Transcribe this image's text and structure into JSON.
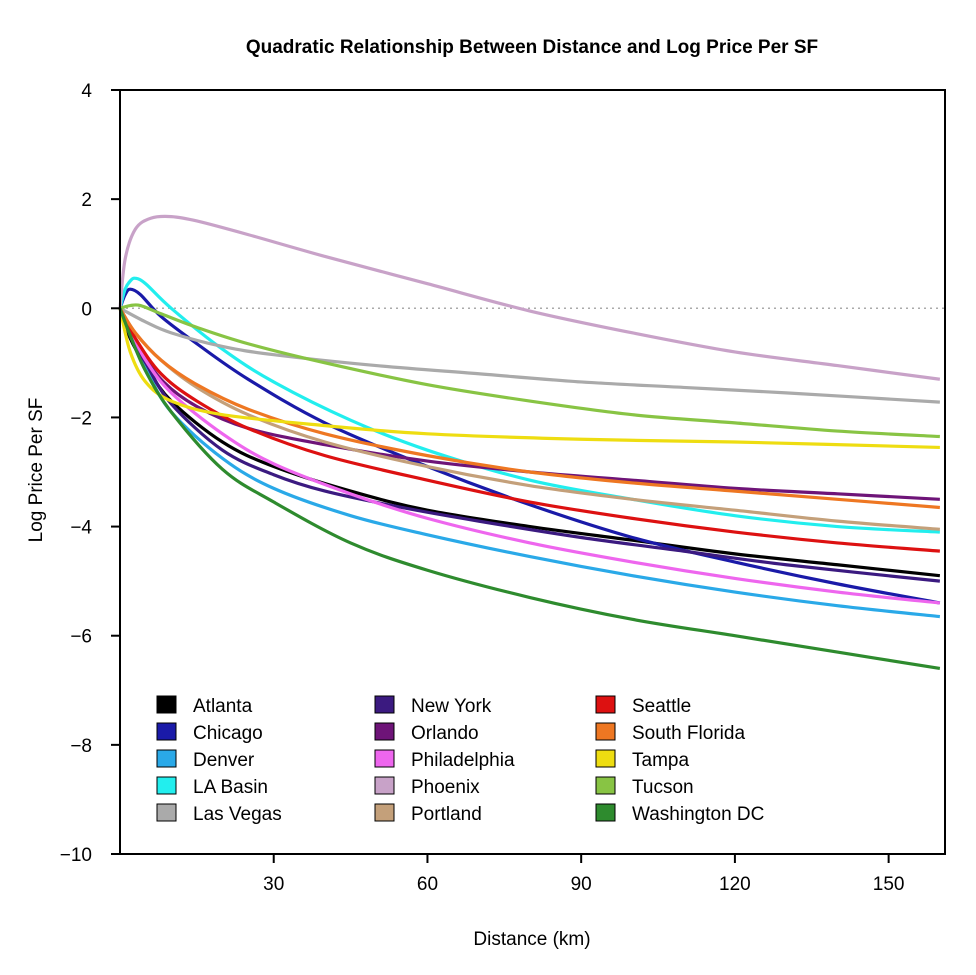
{
  "chart_data": {
    "type": "line",
    "title": "Quadratic Relationship Between Distance and Log Price Per SF",
    "xlabel": "Distance (km)",
    "ylabel": "Log Price Per SF",
    "xlim": [
      0,
      161
    ],
    "ylim": [
      -10,
      4
    ],
    "xticks": [
      30,
      60,
      90,
      120,
      150
    ],
    "yticks": [
      4,
      2,
      0,
      -2,
      -4,
      -6,
      -8,
      -10
    ],
    "ytick_labels": [
      "4",
      "2",
      "0",
      "−2",
      "−4",
      "−6",
      "−8",
      "−10"
    ],
    "reference_line": {
      "y": 0,
      "style": "dotted",
      "color": "#aaaaaa"
    },
    "legend_position": "bottom-left",
    "series": [
      {
        "name": "Atlanta",
        "color": "#000000",
        "points": [
          [
            0,
            0
          ],
          [
            2,
            -0.55
          ],
          [
            5,
            -1.05
          ],
          [
            10,
            -1.7
          ],
          [
            20,
            -2.45
          ],
          [
            30,
            -2.9
          ],
          [
            45,
            -3.35
          ],
          [
            60,
            -3.7
          ],
          [
            80,
            -4.0
          ],
          [
            100,
            -4.25
          ],
          [
            120,
            -4.5
          ],
          [
            140,
            -4.7
          ],
          [
            160,
            -4.9
          ]
        ]
      },
      {
        "name": "Chicago",
        "color": "#1a1aa8",
        "points": [
          [
            0,
            0
          ],
          [
            1,
            0.25
          ],
          [
            2,
            0.35
          ],
          [
            4,
            0.25
          ],
          [
            8,
            -0.15
          ],
          [
            15,
            -0.65
          ],
          [
            25,
            -1.3
          ],
          [
            40,
            -2.1
          ],
          [
            60,
            -2.9
          ],
          [
            80,
            -3.6
          ],
          [
            100,
            -4.2
          ],
          [
            120,
            -4.65
          ],
          [
            140,
            -5.05
          ],
          [
            160,
            -5.4
          ]
        ]
      },
      {
        "name": "Denver",
        "color": "#2aa9e8",
        "points": [
          [
            0,
            0
          ],
          [
            2,
            -0.5
          ],
          [
            5,
            -1.1
          ],
          [
            10,
            -1.9
          ],
          [
            20,
            -2.75
          ],
          [
            30,
            -3.3
          ],
          [
            45,
            -3.8
          ],
          [
            60,
            -4.15
          ],
          [
            80,
            -4.55
          ],
          [
            100,
            -4.9
          ],
          [
            120,
            -5.2
          ],
          [
            140,
            -5.45
          ],
          [
            160,
            -5.65
          ]
        ]
      },
      {
        "name": "LA Basin",
        "color": "#22eeee",
        "points": [
          [
            0,
            0
          ],
          [
            1,
            0.35
          ],
          [
            2,
            0.5
          ],
          [
            3,
            0.55
          ],
          [
            5,
            0.45
          ],
          [
            10,
            0.0
          ],
          [
            20,
            -0.75
          ],
          [
            30,
            -1.35
          ],
          [
            45,
            -2.05
          ],
          [
            60,
            -2.6
          ],
          [
            80,
            -3.15
          ],
          [
            100,
            -3.5
          ],
          [
            120,
            -3.8
          ],
          [
            140,
            -4.0
          ],
          [
            160,
            -4.1
          ]
        ]
      },
      {
        "name": "Las Vegas",
        "color": "#aaaaaa",
        "points": [
          [
            0,
            0
          ],
          [
            5,
            -0.25
          ],
          [
            10,
            -0.45
          ],
          [
            20,
            -0.7
          ],
          [
            30,
            -0.85
          ],
          [
            50,
            -1.05
          ],
          [
            70,
            -1.2
          ],
          [
            90,
            -1.35
          ],
          [
            110,
            -1.45
          ],
          [
            130,
            -1.55
          ],
          [
            160,
            -1.72
          ]
        ]
      },
      {
        "name": "New York",
        "color": "#3b1a80",
        "points": [
          [
            0,
            0
          ],
          [
            2,
            -0.5
          ],
          [
            5,
            -1.0
          ],
          [
            10,
            -1.75
          ],
          [
            20,
            -2.6
          ],
          [
            30,
            -3.05
          ],
          [
            40,
            -3.35
          ],
          [
            55,
            -3.65
          ],
          [
            70,
            -3.9
          ],
          [
            90,
            -4.2
          ],
          [
            110,
            -4.45
          ],
          [
            130,
            -4.7
          ],
          [
            160,
            -5.0
          ]
        ]
      },
      {
        "name": "Orlando",
        "color": "#6e1478",
        "points": [
          [
            0,
            0
          ],
          [
            3,
            -0.6
          ],
          [
            8,
            -1.3
          ],
          [
            15,
            -1.8
          ],
          [
            25,
            -2.2
          ],
          [
            40,
            -2.5
          ],
          [
            60,
            -2.8
          ],
          [
            80,
            -3.0
          ],
          [
            100,
            -3.15
          ],
          [
            120,
            -3.3
          ],
          [
            140,
            -3.4
          ],
          [
            160,
            -3.5
          ]
        ]
      },
      {
        "name": "Philadelphia",
        "color": "#ee66ee",
        "points": [
          [
            0,
            0
          ],
          [
            2,
            -0.4
          ],
          [
            5,
            -0.95
          ],
          [
            10,
            -1.55
          ],
          [
            20,
            -2.3
          ],
          [
            30,
            -2.85
          ],
          [
            45,
            -3.4
          ],
          [
            60,
            -3.85
          ],
          [
            80,
            -4.3
          ],
          [
            100,
            -4.65
          ],
          [
            120,
            -4.95
          ],
          [
            140,
            -5.2
          ],
          [
            160,
            -5.4
          ]
        ]
      },
      {
        "name": "Phoenix",
        "color": "#c8a2c8",
        "points": [
          [
            0,
            0
          ],
          [
            1,
            0.9
          ],
          [
            3,
            1.45
          ],
          [
            6,
            1.65
          ],
          [
            10,
            1.68
          ],
          [
            15,
            1.6
          ],
          [
            25,
            1.35
          ],
          [
            40,
            0.95
          ],
          [
            60,
            0.45
          ],
          [
            80,
            -0.05
          ],
          [
            100,
            -0.45
          ],
          [
            120,
            -0.8
          ],
          [
            140,
            -1.05
          ],
          [
            160,
            -1.3
          ]
        ]
      },
      {
        "name": "Portland",
        "color": "#c4a07a",
        "points": [
          [
            0,
            0
          ],
          [
            3,
            -0.45
          ],
          [
            8,
            -0.95
          ],
          [
            15,
            -1.45
          ],
          [
            25,
            -1.95
          ],
          [
            40,
            -2.45
          ],
          [
            60,
            -2.9
          ],
          [
            80,
            -3.25
          ],
          [
            100,
            -3.5
          ],
          [
            120,
            -3.7
          ],
          [
            140,
            -3.9
          ],
          [
            160,
            -4.05
          ]
        ]
      },
      {
        "name": "Seattle",
        "color": "#dd1111",
        "points": [
          [
            0,
            0
          ],
          [
            3,
            -0.55
          ],
          [
            8,
            -1.2
          ],
          [
            15,
            -1.7
          ],
          [
            25,
            -2.2
          ],
          [
            40,
            -2.7
          ],
          [
            60,
            -3.15
          ],
          [
            80,
            -3.55
          ],
          [
            100,
            -3.85
          ],
          [
            120,
            -4.1
          ],
          [
            140,
            -4.3
          ],
          [
            160,
            -4.45
          ]
        ]
      },
      {
        "name": "South Florida",
        "color": "#ee7722",
        "points": [
          [
            0,
            0
          ],
          [
            3,
            -0.45
          ],
          [
            8,
            -0.95
          ],
          [
            15,
            -1.4
          ],
          [
            25,
            -1.85
          ],
          [
            40,
            -2.3
          ],
          [
            60,
            -2.7
          ],
          [
            80,
            -3.0
          ],
          [
            100,
            -3.2
          ],
          [
            120,
            -3.35
          ],
          [
            140,
            -3.5
          ],
          [
            160,
            -3.65
          ]
        ]
      },
      {
        "name": "Tampa",
        "color": "#eedd11",
        "points": [
          [
            0,
            0
          ],
          [
            2,
            -0.8
          ],
          [
            5,
            -1.35
          ],
          [
            10,
            -1.7
          ],
          [
            20,
            -1.95
          ],
          [
            40,
            -2.15
          ],
          [
            60,
            -2.3
          ],
          [
            90,
            -2.4
          ],
          [
            120,
            -2.45
          ],
          [
            160,
            -2.55
          ]
        ]
      },
      {
        "name": "Tucson",
        "color": "#88c444",
        "points": [
          [
            0,
            0
          ],
          [
            2,
            0.05
          ],
          [
            4,
            0.05
          ],
          [
            8,
            -0.1
          ],
          [
            15,
            -0.35
          ],
          [
            25,
            -0.65
          ],
          [
            40,
            -1.0
          ],
          [
            60,
            -1.4
          ],
          [
            80,
            -1.7
          ],
          [
            100,
            -1.95
          ],
          [
            120,
            -2.1
          ],
          [
            140,
            -2.25
          ],
          [
            160,
            -2.35
          ]
        ]
      },
      {
        "name": "Washington DC",
        "color": "#2e8b2e",
        "points": [
          [
            0,
            0
          ],
          [
            2,
            -0.5
          ],
          [
            5,
            -1.15
          ],
          [
            10,
            -1.9
          ],
          [
            20,
            -2.95
          ],
          [
            30,
            -3.55
          ],
          [
            45,
            -4.3
          ],
          [
            60,
            -4.8
          ],
          [
            80,
            -5.3
          ],
          [
            100,
            -5.7
          ],
          [
            120,
            -6.0
          ],
          [
            140,
            -6.3
          ],
          [
            160,
            -6.6
          ]
        ]
      }
    ]
  }
}
